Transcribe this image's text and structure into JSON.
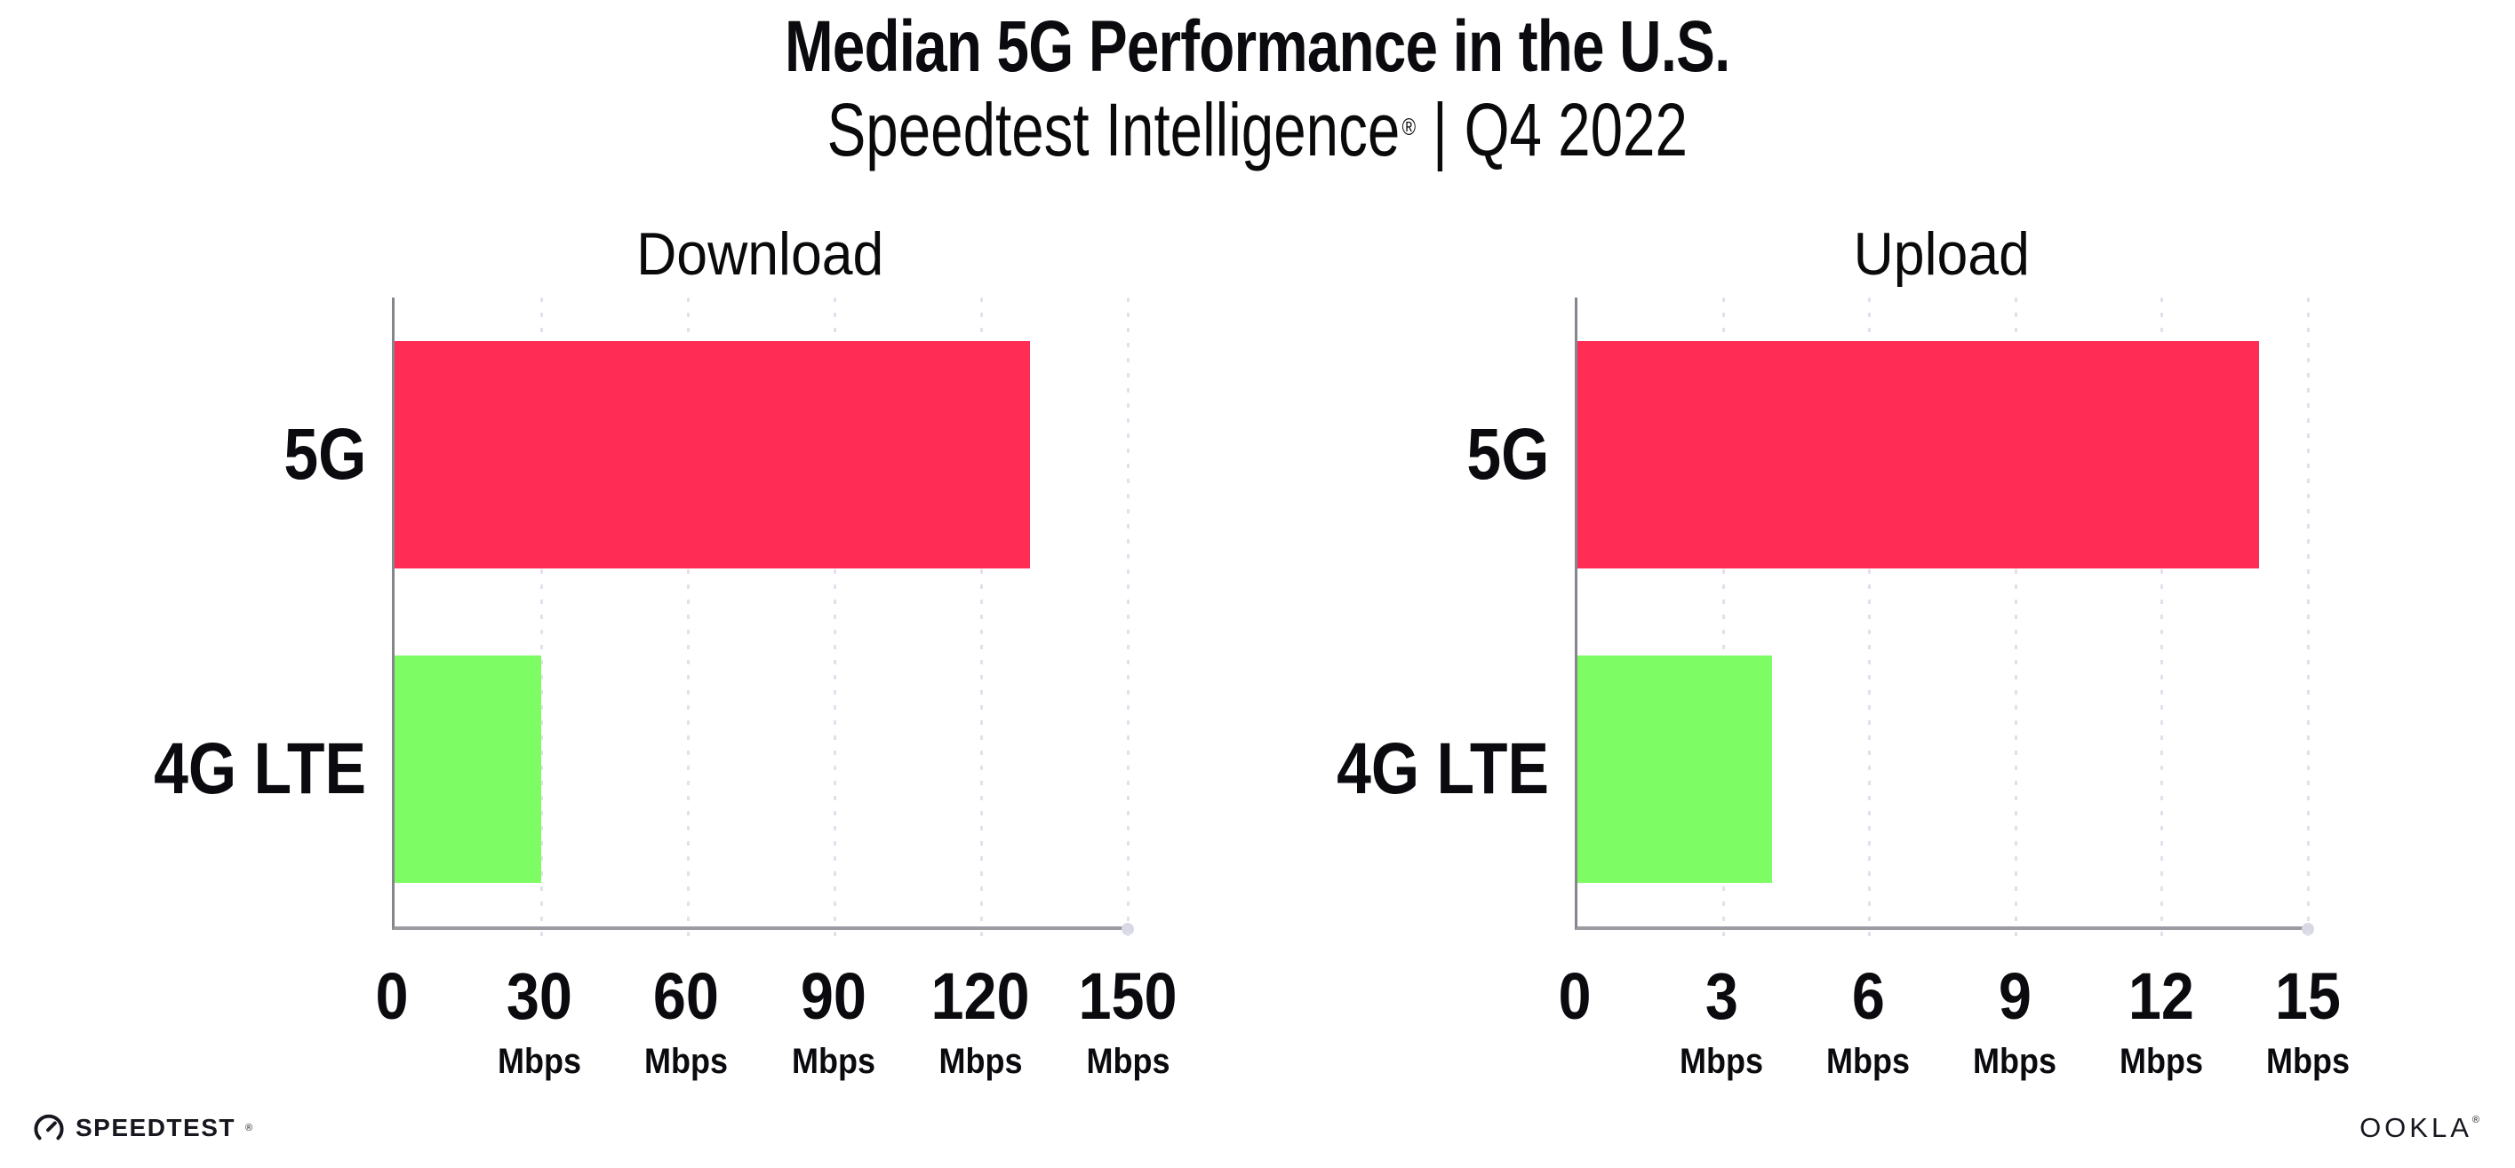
{
  "header": {
    "title": "Median 5G Performance in the U.S.",
    "subtitle_brand": "Speedtest Intelligence",
    "subtitle_reg": "®",
    "subtitle_divider": "|",
    "subtitle_period": "Q4 2022"
  },
  "chart_data": [
    {
      "type": "bar",
      "orientation": "horizontal",
      "title": "Download",
      "categories": [
        "5G",
        "4G LTE"
      ],
      "values": [
        130,
        30
      ],
      "unit": "Mbps",
      "xlim": [
        0,
        150
      ],
      "xticks": [
        0,
        30,
        60,
        90,
        120,
        150
      ],
      "bar_colors": [
        "#FF2D55",
        "#7DFC64"
      ],
      "grid": "dotted vertical gridlines at each tick",
      "legend": "none"
    },
    {
      "type": "bar",
      "orientation": "horizontal",
      "title": "Upload",
      "categories": [
        "5G",
        "4G LTE"
      ],
      "values": [
        14,
        4
      ],
      "unit": "Mbps",
      "xlim": [
        0,
        15
      ],
      "xticks": [
        0,
        3,
        6,
        9,
        12,
        15
      ],
      "bar_colors": [
        "#FF2D55",
        "#7DFC64"
      ],
      "grid": "dotted vertical gridlines at each tick",
      "legend": "none"
    }
  ],
  "footer": {
    "speedtest_logo_text": "SPEEDTEST",
    "speedtest_trademark": "®",
    "ookla_logo_text": "OOKLA",
    "ookla_trademark": "®"
  },
  "colors": {
    "bar_5g": "#FF2D55",
    "bar_4g": "#7DFC64",
    "grid_dot": "#E1E1ED",
    "axis_x": "#9B9BA1",
    "axis_y": "#85858D",
    "text": "#0B0B0F",
    "logo": "#17171F"
  }
}
